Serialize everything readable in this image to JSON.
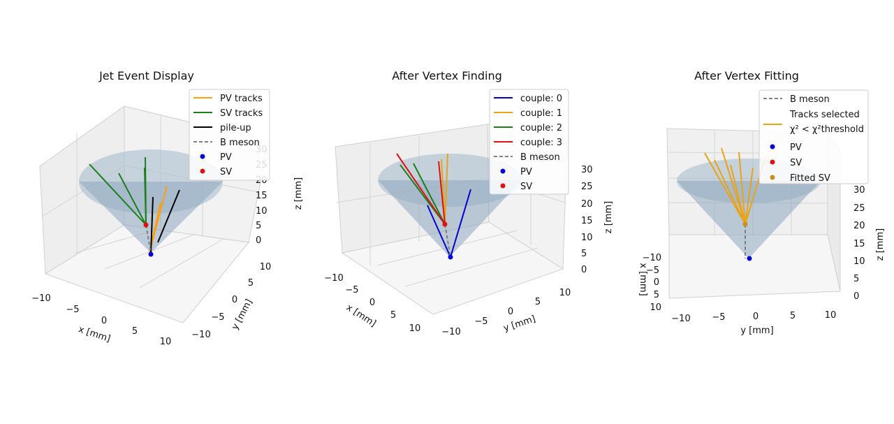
{
  "chart_data": [
    {
      "type": "scatter",
      "title": "Jet Event Display",
      "xlabel": "x [mm]",
      "ylabel": "y [mm]",
      "zlabel": "z [mm]",
      "x_ticks": [
        "−10",
        "−5",
        "0",
        "5",
        "10"
      ],
      "y_ticks": [
        "−10",
        "−5",
        "0",
        "5",
        "10"
      ],
      "z_ticks": [
        "0",
        "5",
        "10",
        "15",
        "20",
        "25",
        "30"
      ],
      "legend": [
        {
          "label": "PV tracks",
          "kind": "line",
          "color": "#ff9f0e",
          "dash": false
        },
        {
          "label": "SV tracks",
          "kind": "line",
          "color": "#1a7f1a",
          "dash": false
        },
        {
          "label": "pile-up",
          "kind": "line",
          "color": "#000000",
          "dash": false
        },
        {
          "label": "B meson",
          "kind": "line",
          "color": "#808080",
          "dash": true
        },
        {
          "label": "PV",
          "kind": "marker",
          "color": "#0000dd"
        },
        {
          "label": "SV",
          "kind": "marker",
          "color": "#dd1111"
        }
      ]
    },
    {
      "type": "scatter",
      "title": "After Vertex Finding",
      "xlabel": "x [mm]",
      "ylabel": "y [mm]",
      "zlabel": "z [mm]",
      "x_ticks": [
        "−10",
        "−5",
        "0",
        "5",
        "10"
      ],
      "y_ticks": [
        "−10",
        "−5",
        "0",
        "5",
        "10"
      ],
      "z_ticks": [
        "0",
        "5",
        "10",
        "15",
        "20",
        "25",
        "30"
      ],
      "legend": [
        {
          "label": "couple: 0",
          "kind": "line",
          "color": "#0000cc",
          "dash": false
        },
        {
          "label": "couple: 1",
          "kind": "line",
          "color": "#e8a317",
          "dash": false
        },
        {
          "label": "couple: 2",
          "kind": "line",
          "color": "#1a7f1a",
          "dash": false
        },
        {
          "label": "couple: 3",
          "kind": "line",
          "color": "#dd1111",
          "dash": false
        },
        {
          "label": "B meson",
          "kind": "line",
          "color": "#808080",
          "dash": true
        },
        {
          "label": "PV",
          "kind": "marker",
          "color": "#0000dd"
        },
        {
          "label": "SV",
          "kind": "marker",
          "color": "#dd1111"
        }
      ]
    },
    {
      "type": "scatter",
      "title": "After Vertex Fitting",
      "xlabel": "x [mm]",
      "ylabel": "y [mm]",
      "zlabel": "z [mm]",
      "x_ticks": [
        "−10",
        "−5",
        "0",
        "5",
        "10"
      ],
      "y_ticks": [
        "−10",
        "−5",
        "0",
        "5",
        "10"
      ],
      "z_ticks": [
        "0",
        "5",
        "10",
        "15",
        "20",
        "25",
        "30"
      ],
      "legend": [
        {
          "label": "B meson",
          "kind": "line",
          "color": "#808080",
          "dash": true
        },
        {
          "label": "Tracks selected",
          "sublabel": "χ² < χ²threshold",
          "kind": "line",
          "color": "#e8a317",
          "dash": false
        },
        {
          "label": "PV",
          "kind": "marker",
          "color": "#0000dd"
        },
        {
          "label": "SV",
          "kind": "marker",
          "color": "#dd1111"
        },
        {
          "label": "Fitted SV",
          "kind": "marker",
          "color": "#c8901a"
        }
      ]
    }
  ]
}
